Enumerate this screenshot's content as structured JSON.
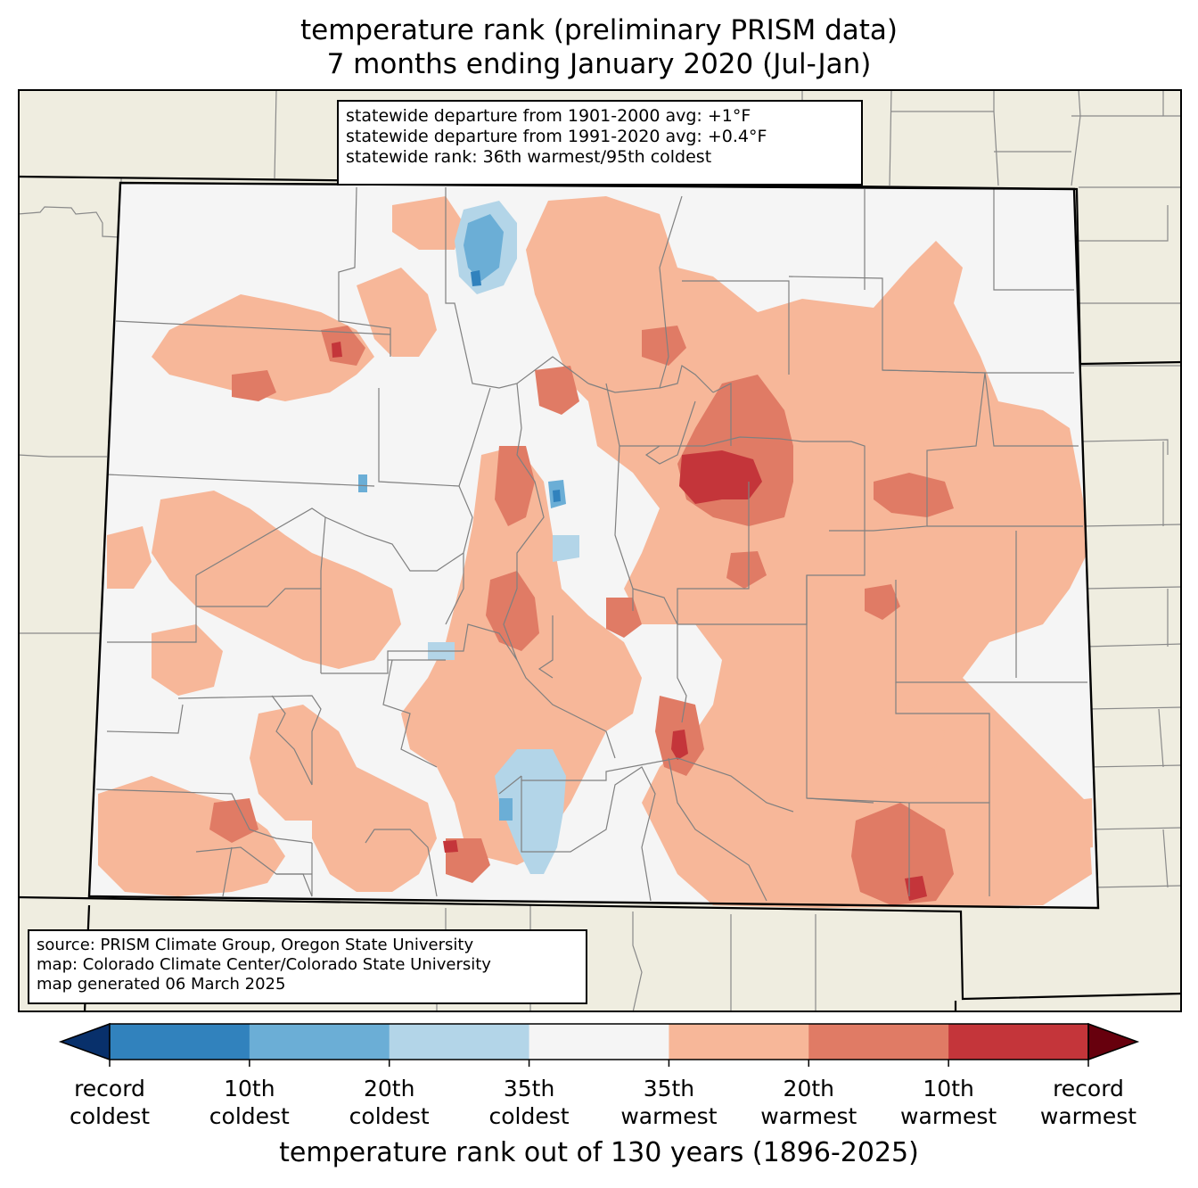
{
  "title": {
    "line1": "temperature rank (preliminary PRISM data)",
    "line2": "7 months ending January 2020 (Jul-Jan)"
  },
  "stats": {
    "line1": "statewide departure from 1901-2000 avg: +1°F",
    "line2": "statewide departure from 1991-2020 avg: +0.4°F",
    "line3": "statewide rank: 36th warmest/95th coldest"
  },
  "source": {
    "line1": "source: PRISM Climate Group, Oregon State University",
    "line2": "map: Colorado Climate Center/Colorado State University",
    "line3": "map generated 06 March 2025"
  },
  "colorbar": {
    "title": "temperature rank out of 130 years (1896-2025)",
    "ticks": [
      {
        "line1": "record",
        "line2": "coldest"
      },
      {
        "line1": "10th",
        "line2": "coldest"
      },
      {
        "line1": "20th",
        "line2": "coldest"
      },
      {
        "line1": "35th",
        "line2": "coldest"
      },
      {
        "line1": "35th",
        "line2": "warmest"
      },
      {
        "line1": "20th",
        "line2": "warmest"
      },
      {
        "line1": "10th",
        "line2": "warmest"
      },
      {
        "line1": "record",
        "line2": "warmest"
      }
    ],
    "colors": [
      "#08306b",
      "#3182bd",
      "#6baed6",
      "#b3d5e8",
      "#f5f5f5",
      "#f7b799",
      "#e07b65",
      "#c4353a",
      "#67000d"
    ]
  },
  "map_colors": {
    "background": "#efede0",
    "state_fill": "#f5f5f5",
    "warm_35th": "#f7b799",
    "warm_20th": "#e07b65",
    "warm_10th": "#c4353a",
    "cold_35th": "#b3d5e8",
    "cold_20th": "#6baed6",
    "cold_10th": "#3182bd"
  }
}
